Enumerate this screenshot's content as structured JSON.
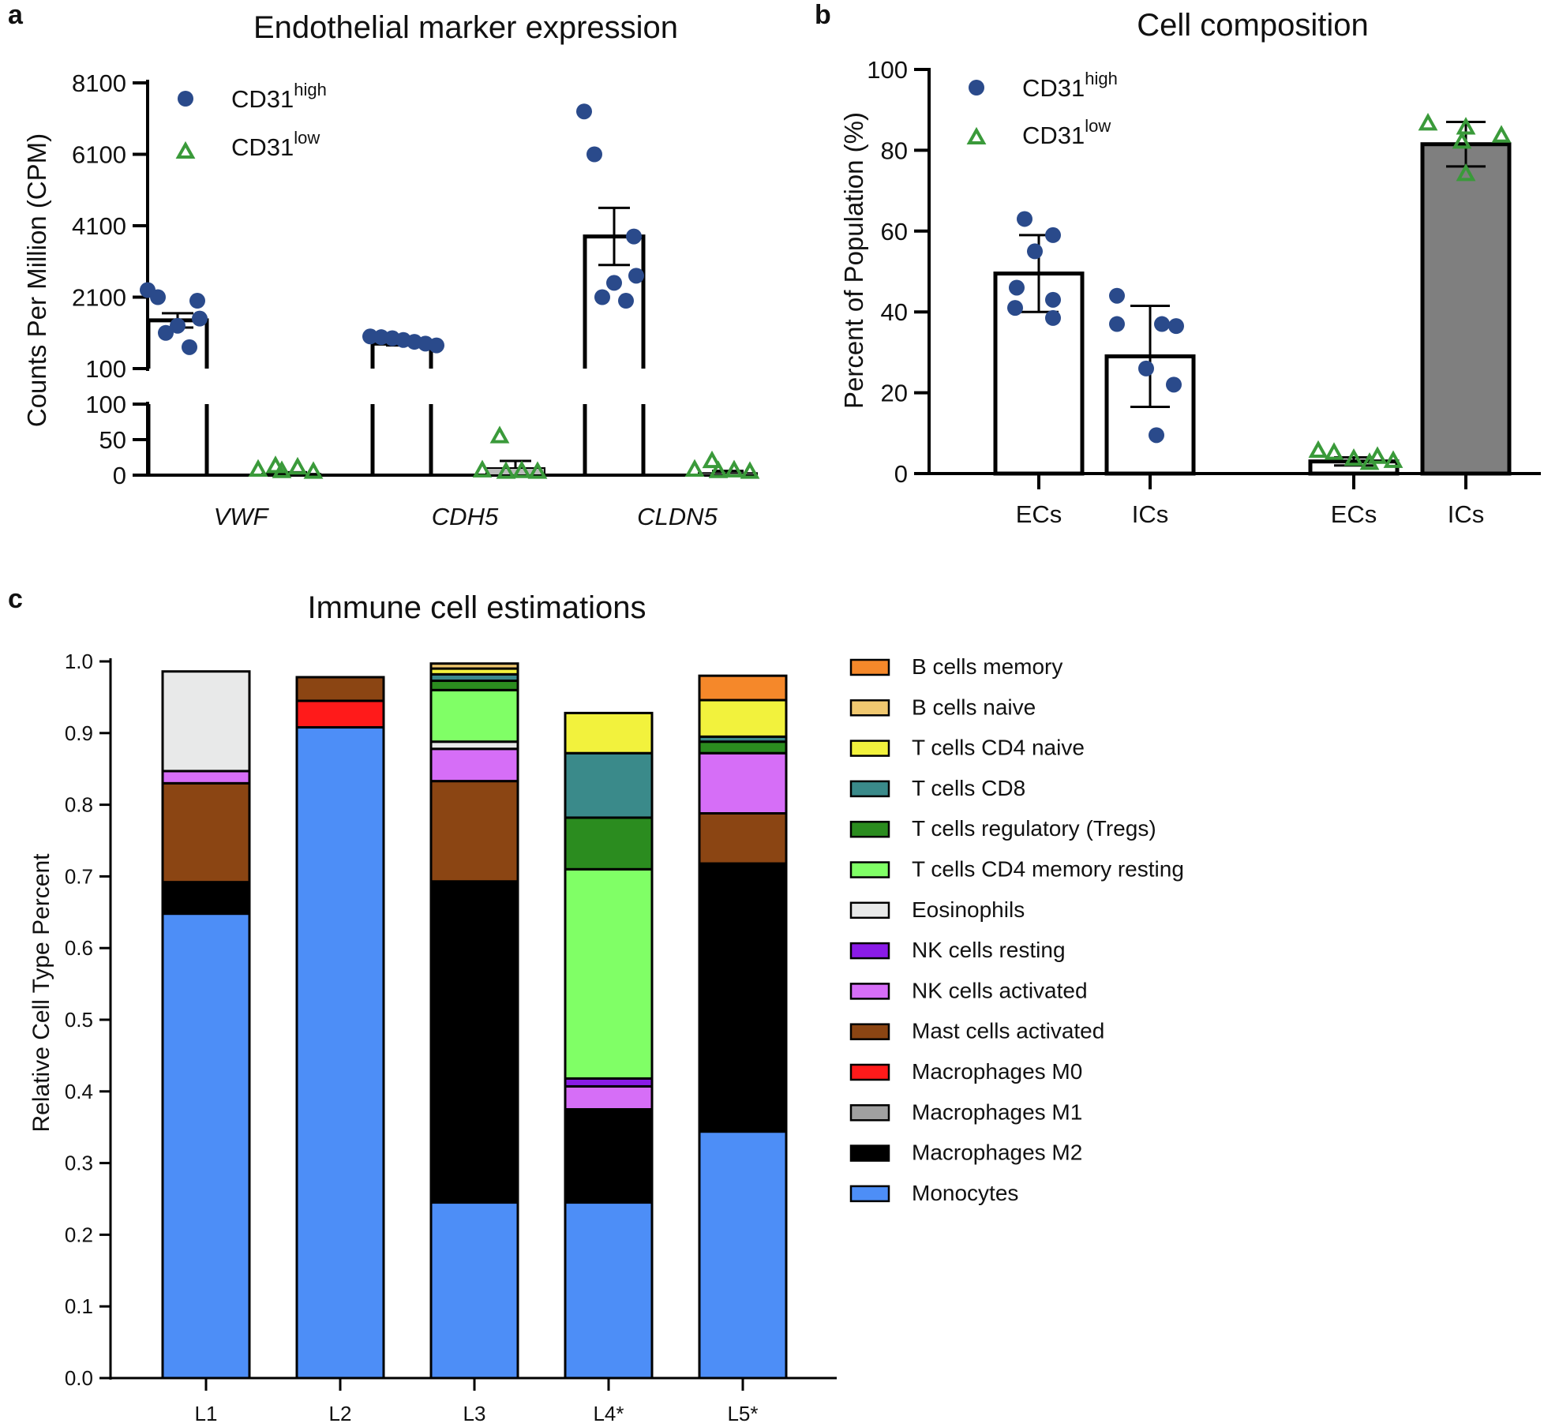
{
  "colors": {
    "high": "#2a4a8b",
    "low": "#3a9a3a",
    "gray_bar": "#7f7f7f"
  },
  "chart_data": [
    {
      "panel": "a",
      "type": "scatter",
      "title": "Endothelial marker expression",
      "ylabel": "Counts Per Million (CPM)",
      "yaxis_upper": {
        "range": [
          100,
          8100
        ],
        "ticks": [
          "8100",
          "6100",
          "4100",
          "2100",
          "100"
        ]
      },
      "yaxis_lower": {
        "range": [
          0,
          100
        ],
        "ticks": [
          "100",
          "50",
          "0"
        ]
      },
      "categories": [
        "VWF",
        "CDH5",
        "CLDN5"
      ],
      "legend": {
        "high": {
          "label": "CD31",
          "sup": "high"
        },
        "low": {
          "label": "CD31",
          "sup": "low"
        }
      },
      "series": [
        {
          "name": "CD31 high",
          "means": [
            1450,
            800,
            3800
          ],
          "sem": [
            200,
            50,
            800
          ],
          "points": [
            [
              2300,
              2100,
              2000,
              1500,
              1300,
              1100,
              700
            ],
            [
              1000,
              980,
              950,
              900,
              850,
              800,
              750
            ],
            [
              7300,
              6100,
              3800,
              2700,
              2500,
              2100,
              2000
            ]
          ]
        },
        {
          "name": "CD31 low",
          "means": [
            2,
            10,
            3
          ],
          "sem": [
            2,
            10,
            3
          ],
          "points": [
            [
              8,
              3,
              6,
              1,
              0
            ],
            [
              50,
              2,
              1,
              0,
              0
            ],
            [
              15,
              3,
              2,
              1,
              0
            ]
          ]
        }
      ]
    },
    {
      "panel": "b",
      "type": "scatter",
      "title": "Cell composition",
      "ylabel": "Percent of Population (%)",
      "ylim": [
        0,
        100
      ],
      "yticks": [
        "0",
        "20",
        "40",
        "60",
        "80",
        "100"
      ],
      "categories": [
        "ECs",
        "ICs",
        "ECs",
        "ICs"
      ],
      "legend": {
        "high": {
          "label": "CD31",
          "sup": "high"
        },
        "low": {
          "label": "CD31",
          "sup": "low"
        }
      },
      "series": [
        {
          "name": "CD31 high",
          "means": [
            49.5,
            29
          ],
          "sd": [
            9.5,
            12.5
          ],
          "points": [
            [
              63,
              59,
              55,
              46,
              43,
              41,
              38.5
            ],
            [
              44,
              37,
              37,
              36.5,
              26,
              22,
              9.5
            ]
          ]
        },
        {
          "name": "CD31 low",
          "means": [
            3,
            81.5
          ],
          "sd": [
            1,
            5.5
          ],
          "points": [
            [
              5,
              4.5,
              3.5,
              3,
              2.5,
              2
            ],
            [
              86,
              85,
              83,
              81.5,
              73.5
            ]
          ]
        }
      ]
    },
    {
      "panel": "c",
      "type": "bar",
      "stacked": true,
      "title": "Immune cell estimations",
      "ylabel": "Relative Cell Type Percent",
      "ylim": [
        0,
        1
      ],
      "yticks": [
        "0.0",
        "0.1",
        "0.2",
        "0.3",
        "0.4",
        "0.5",
        "0.6",
        "0.7",
        "0.8",
        "0.9",
        "1.0"
      ],
      "categories": [
        "L1",
        "L2",
        "L3",
        "L4*",
        "L5*"
      ],
      "series": [
        {
          "name": "Monocytes",
          "color": "#4d8ef7",
          "values": [
            0.648,
            0.908,
            0.245,
            0.245,
            0.344
          ]
        },
        {
          "name": "Macrophages M2",
          "color": "#000000",
          "values": [
            0.044,
            0,
            0.448,
            0.13,
            0.374
          ]
        },
        {
          "name": "Macrophages M1",
          "color": "#a0a0a0",
          "values": [
            0,
            0,
            0,
            0,
            0
          ]
        },
        {
          "name": "Macrophages M0",
          "color": "#ff1a1a",
          "values": [
            0,
            0.037,
            0,
            0,
            0
          ]
        },
        {
          "name": "Mast cells activated",
          "color": "#8b4513",
          "values": [
            0.138,
            0.033,
            0.14,
            0,
            0.07
          ]
        },
        {
          "name": "NK cells activated",
          "color": "#d66ef7",
          "values": [
            0.017,
            0,
            0.045,
            0.032,
            0.084
          ]
        },
        {
          "name": "NK cells resting",
          "color": "#8a1be6",
          "values": [
            0,
            0,
            0,
            0.011,
            0
          ]
        },
        {
          "name": "Eosinophils",
          "color": "#e8e9e9",
          "values": [
            0.139,
            0,
            0.01,
            0,
            0
          ]
        },
        {
          "name": "T cells CD4 memory resting",
          "color": "#80ff66",
          "values": [
            0,
            0,
            0.072,
            0.292,
            0
          ]
        },
        {
          "name": "T cells regulatory (Tregs)",
          "color": "#2b8c1f",
          "values": [
            0,
            0,
            0.013,
            0.072,
            0.016
          ]
        },
        {
          "name": "T cells CD8",
          "color": "#3a8a8a",
          "values": [
            0,
            0,
            0.009,
            0.09,
            0.007
          ]
        },
        {
          "name": "T cells CD4 naive",
          "color": "#f2f23d",
          "values": [
            0,
            0,
            0.008,
            0.056,
            0.051
          ]
        },
        {
          "name": "B cells naive",
          "color": "#f0c870",
          "values": [
            0,
            0,
            0.007,
            0,
            0
          ]
        },
        {
          "name": "B cells memory",
          "color": "#f5882a",
          "values": [
            0,
            0,
            0,
            0,
            0.034
          ]
        }
      ],
      "legend_order": [
        "B cells memory",
        "B cells naive",
        "T cells CD4 naive",
        "T cells CD8",
        "T cells regulatory (Tregs)",
        "T cells CD4 memory resting",
        "Eosinophils",
        "NK cells resting",
        "NK cells activated",
        "Mast cells activated",
        "Macrophages M0",
        "Macrophages M1",
        "Macrophages M2",
        "Monocytes"
      ]
    }
  ]
}
